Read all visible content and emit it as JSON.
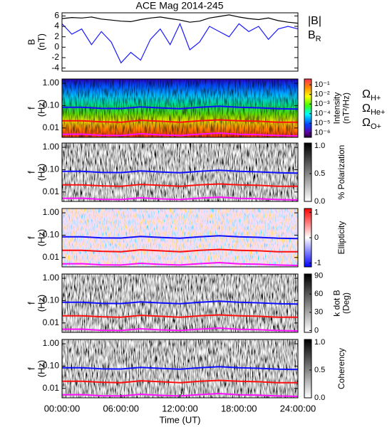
{
  "chart_data": [
    {
      "type": "line",
      "title": "ACE Mag 2014-245",
      "ylabel": [
        "B",
        "(nT)"
      ],
      "x": [
        0,
        1,
        2,
        3,
        4,
        5,
        6,
        7,
        8,
        9,
        10,
        11,
        12,
        13,
        14,
        15,
        16,
        17,
        18,
        19,
        20,
        21,
        22,
        23,
        24
      ],
      "xlim": [
        0,
        24
      ],
      "ylim": [
        -4.6,
        6.6
      ],
      "yticks": [
        -4,
        -2,
        0,
        2,
        4,
        6
      ],
      "series": [
        {
          "name": "|B|",
          "color": "#000000",
          "values": [
            5.5,
            5.7,
            5.6,
            5.8,
            5.4,
            5.2,
            5.0,
            4.9,
            5.3,
            5.6,
            5.8,
            5.5,
            5.2,
            4.8,
            5.0,
            5.6,
            5.9,
            6.2,
            5.8,
            5.5,
            5.3,
            5.6,
            5.1,
            4.8,
            4.6
          ]
        },
        {
          "name": "BR",
          "color": "#1a1aff",
          "values": [
            4.5,
            2.5,
            3.5,
            0.5,
            3.0,
            1.0,
            -3.0,
            -1.0,
            -2.5,
            1.5,
            3.5,
            0.5,
            4.5,
            -0.5,
            1.0,
            4.0,
            3.0,
            2.0,
            4.5,
            3.0,
            4.0,
            1.5,
            3.5,
            4.0,
            3.5
          ]
        }
      ]
    },
    {
      "type": "spectrogram",
      "colormap": "rainbow",
      "ylabel": [
        "f",
        "(Hz)"
      ],
      "ylog": true,
      "x": [
        0,
        2,
        4,
        6,
        8,
        10,
        12,
        14,
        16,
        18,
        20,
        22,
        24
      ],
      "xlim": [
        0,
        24
      ],
      "ylim": [
        0.0038,
        1.56
      ],
      "yticks": [
        {
          "value": 1,
          "label": "1.00"
        },
        {
          "value": 0.1,
          "label": "0.10"
        },
        {
          "value": 0.01,
          "label": "0.01"
        }
      ],
      "clabel": [
        "Intensity",
        "(nT²/Hz)"
      ],
      "clog": true,
      "clim": [
        3.5e-07,
        0.4
      ],
      "cticks": [
        {
          "value": 0.1,
          "label": "10⁻¹"
        },
        {
          "value": 0.01,
          "label": "10⁻²"
        },
        {
          "value": 0.001,
          "label": "10⁻³"
        },
        {
          "value": 0.0001,
          "label": "10⁻⁴"
        },
        {
          "value": 1e-05,
          "label": "10⁻⁵"
        },
        {
          "value": 1e-06,
          "label": "10⁻⁶"
        }
      ],
      "series": [
        {
          "name": "ΩH+",
          "color": "#1010ff",
          "values": [
            0.084,
            0.085,
            0.076,
            0.074,
            0.088,
            0.079,
            0.073,
            0.085,
            0.094,
            0.084,
            0.08,
            0.073,
            0.07
          ]
        },
        {
          "name": "ΩHe+",
          "color": "#ff1010",
          "values": [
            0.021,
            0.021,
            0.019,
            0.018,
            0.022,
            0.02,
            0.018,
            0.021,
            0.023,
            0.021,
            0.02,
            0.018,
            0.018
          ]
        },
        {
          "name": "ΩO+",
          "color": "#ff10ff",
          "values": [
            0.0052,
            0.0053,
            0.0047,
            0.0046,
            0.0055,
            0.0049,
            0.0046,
            0.0053,
            0.0059,
            0.0052,
            0.005,
            0.0046,
            0.0044
          ]
        }
      ]
    },
    {
      "type": "spectrogram",
      "colormap": "gray",
      "ylabel": [
        "f",
        "(Hz)"
      ],
      "ylog": true,
      "x": [
        0,
        2,
        4,
        6,
        8,
        10,
        12,
        14,
        16,
        18,
        20,
        22,
        24
      ],
      "xlim": [
        0,
        24
      ],
      "ylim": [
        0.0038,
        1.56
      ],
      "yticks": [
        {
          "value": 1,
          "label": "1.00"
        },
        {
          "value": 0.1,
          "label": "0.10"
        },
        {
          "value": 0.01,
          "label": "0.01"
        }
      ],
      "clabel": [
        "% Polarization"
      ],
      "clim": [
        0,
        1.05
      ],
      "cticks": [
        {
          "value": 0,
          "label": "0.0"
        },
        {
          "value": 0.5,
          "label": "0.5"
        },
        {
          "value": 1,
          "label": "1.0"
        }
      ],
      "series": [
        {
          "color": "#1010ff",
          "values": [
            0.084,
            0.085,
            0.076,
            0.074,
            0.088,
            0.079,
            0.073,
            0.085,
            0.094,
            0.084,
            0.08,
            0.073,
            0.07
          ]
        },
        {
          "color": "#ff1010",
          "values": [
            0.021,
            0.021,
            0.019,
            0.018,
            0.022,
            0.02,
            0.018,
            0.021,
            0.023,
            0.021,
            0.02,
            0.018,
            0.018
          ]
        },
        {
          "color": "#ff10ff",
          "values": [
            0.0052,
            0.0053,
            0.0047,
            0.0046,
            0.0055,
            0.0049,
            0.0046,
            0.0053,
            0.0059,
            0.0052,
            0.005,
            0.0046,
            0.0044
          ]
        }
      ]
    },
    {
      "type": "spectrogram",
      "colormap": "bwr",
      "ylabel": [
        "f",
        "(Hz)"
      ],
      "ylog": true,
      "x": [
        0,
        2,
        4,
        6,
        8,
        10,
        12,
        14,
        16,
        18,
        20,
        22,
        24
      ],
      "xlim": [
        0,
        24
      ],
      "ylim": [
        0.0038,
        1.56
      ],
      "yticks": [
        {
          "value": 1,
          "label": "1.00"
        },
        {
          "value": 0.1,
          "label": "0.10"
        },
        {
          "value": 0.01,
          "label": "0.01"
        }
      ],
      "clabel": [
        "Ellipticity"
      ],
      "clim": [
        -1.15,
        1.15
      ],
      "cticks": [
        -1,
        0,
        1
      ],
      "series": [
        {
          "color": "#1010ff",
          "values": [
            0.084,
            0.085,
            0.076,
            0.074,
            0.088,
            0.079,
            0.073,
            0.085,
            0.094,
            0.084,
            0.08,
            0.073,
            0.07
          ]
        },
        {
          "color": "#ff1010",
          "values": [
            0.021,
            0.021,
            0.019,
            0.018,
            0.022,
            0.02,
            0.018,
            0.021,
            0.023,
            0.021,
            0.02,
            0.018,
            0.018
          ]
        },
        {
          "color": "#ff10ff",
          "values": [
            0.0052,
            0.0053,
            0.0047,
            0.0046,
            0.0055,
            0.0049,
            0.0046,
            0.0053,
            0.0059,
            0.0052,
            0.005,
            0.0046,
            0.0044
          ]
        }
      ]
    },
    {
      "type": "spectrogram",
      "colormap": "gray",
      "ylabel": [
        "f",
        "(Hz)"
      ],
      "ylog": true,
      "x": [
        0,
        2,
        4,
        6,
        8,
        10,
        12,
        14,
        16,
        18,
        20,
        22,
        24
      ],
      "xlim": [
        0,
        24
      ],
      "ylim": [
        0.0038,
        1.56
      ],
      "yticks": [
        {
          "value": 1,
          "label": "1.00"
        },
        {
          "value": 0.1,
          "label": "0.10"
        },
        {
          "value": 0.01,
          "label": "0.01"
        }
      ],
      "clabel": [
        "k dot B",
        "(Deg)"
      ],
      "clim": [
        -3,
        93
      ],
      "cticks": [
        0,
        30,
        60,
        90
      ],
      "series": [
        {
          "color": "#1010ff",
          "values": [
            0.084,
            0.085,
            0.076,
            0.074,
            0.088,
            0.079,
            0.073,
            0.085,
            0.094,
            0.084,
            0.08,
            0.073,
            0.07
          ]
        },
        {
          "color": "#ff1010",
          "values": [
            0.021,
            0.021,
            0.019,
            0.018,
            0.022,
            0.02,
            0.018,
            0.021,
            0.023,
            0.021,
            0.02,
            0.018,
            0.018
          ]
        },
        {
          "color": "#ff10ff",
          "values": [
            0.0052,
            0.0053,
            0.0047,
            0.0046,
            0.0055,
            0.0049,
            0.0046,
            0.0053,
            0.0059,
            0.0052,
            0.005,
            0.0046,
            0.0044
          ]
        }
      ]
    },
    {
      "type": "spectrogram",
      "colormap": "gray",
      "ylabel": [
        "f",
        "(Hz)"
      ],
      "ylog": true,
      "x": [
        0,
        2,
        4,
        6,
        8,
        10,
        12,
        14,
        16,
        18,
        20,
        22,
        24
      ],
      "xlim": [
        0,
        24
      ],
      "ylim": [
        0.0038,
        1.56
      ],
      "yticks": [
        {
          "value": 1,
          "label": "1.00"
        },
        {
          "value": 0.1,
          "label": "0.10"
        },
        {
          "value": 0.01,
          "label": "0.01"
        }
      ],
      "clabel": [
        "Coherency"
      ],
      "clim": [
        0,
        1.05
      ],
      "cticks": [
        {
          "value": 0,
          "label": "0.0"
        },
        {
          "value": 0.5,
          "label": "0.5"
        },
        {
          "value": 1,
          "label": "1.0"
        }
      ],
      "xlabel": "Time (UT)",
      "xticks": [
        {
          "value": 0,
          "label": "00:00:00"
        },
        {
          "value": 6,
          "label": "06:00:00"
        },
        {
          "value": 12,
          "label": "12:00:00"
        },
        {
          "value": 18,
          "label": "18:00:00"
        },
        {
          "value": 24,
          "label": "24:00:00"
        }
      ],
      "series": [
        {
          "color": "#1010ff",
          "values": [
            0.084,
            0.085,
            0.076,
            0.074,
            0.088,
            0.079,
            0.073,
            0.085,
            0.094,
            0.084,
            0.08,
            0.073,
            0.07
          ]
        },
        {
          "color": "#ff1010",
          "values": [
            0.021,
            0.021,
            0.019,
            0.018,
            0.022,
            0.02,
            0.018,
            0.021,
            0.023,
            0.021,
            0.02,
            0.018,
            0.018
          ]
        },
        {
          "color": "#ff10ff",
          "values": [
            0.0052,
            0.0053,
            0.0047,
            0.0046,
            0.0055,
            0.0049,
            0.0046,
            0.0053,
            0.0059,
            0.0052,
            0.005,
            0.0046,
            0.0044
          ]
        }
      ]
    }
  ]
}
